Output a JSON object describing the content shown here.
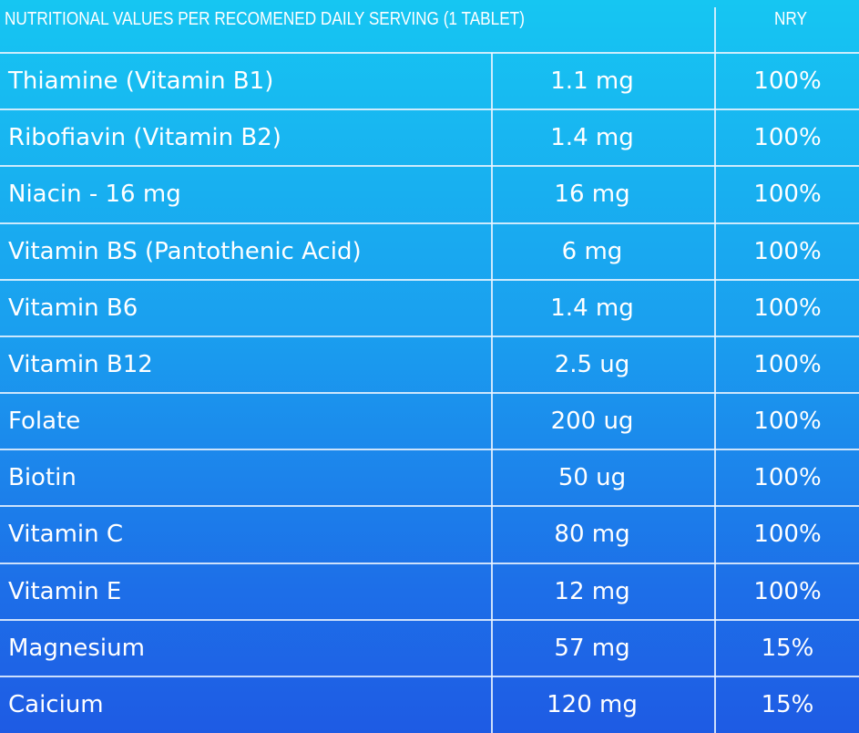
{
  "header": {
    "title": "NUTRITIONAL VALUES PER RECOMENED DAILY SERVING (1 TABLET)",
    "nry": "NRY"
  },
  "table": {
    "rows": [
      [
        "Thiamine (Vitamin B1)",
        "1.1 mg",
        "100%"
      ],
      [
        "Ribofiavin (Vitamin B2)",
        "1.4 mg",
        "100%"
      ],
      [
        "Niacin - 16 mg",
        "16 mg",
        "100%"
      ],
      [
        "Vitamin BS (Pantothenic Acid)",
        "6 mg",
        "100%"
      ],
      [
        "Vitamin B6",
        "1.4 mg",
        "100%"
      ],
      [
        "Vitamin B12",
        "2.5 ug",
        "100%"
      ],
      [
        "Folate",
        "200 ug",
        "100%"
      ],
      [
        "Biotin",
        "50 ug",
        "100%"
      ],
      [
        "Vitamin C",
        "80 mg",
        "100%"
      ],
      [
        "Vitamin E",
        "12 mg",
        "100%"
      ],
      [
        "Magnesium",
        "57 mg",
        "15%"
      ],
      [
        "Caicium",
        "120 mg",
        "15%"
      ]
    ]
  }
}
